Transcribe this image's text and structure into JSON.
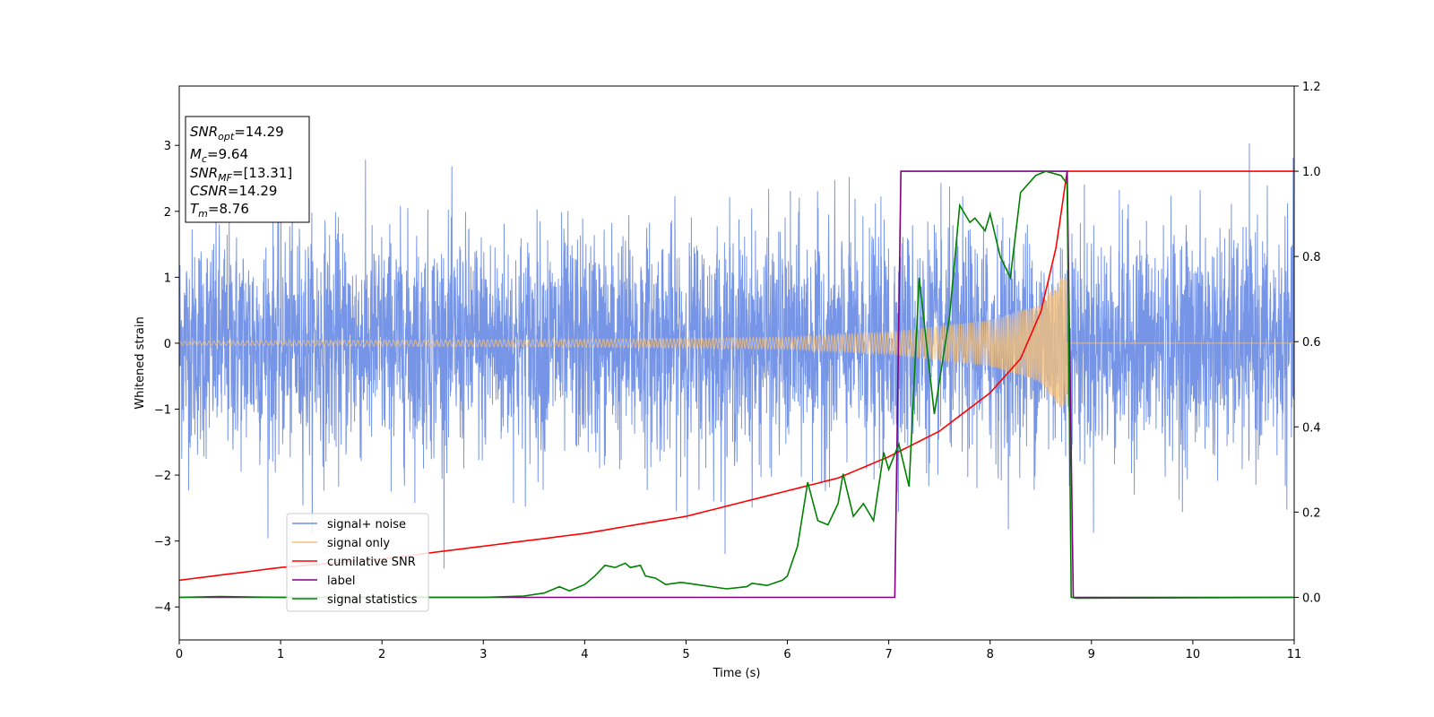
{
  "chart_data": {
    "type": "line",
    "xlabel": "Time (s)",
    "ylabel": "Whitened strain",
    "xlim": [
      0,
      11
    ],
    "ylim": [
      -4.5,
      3.9
    ],
    "y2lim": [
      -0.1,
      1.2
    ],
    "xticks": [
      "0",
      "1",
      "2",
      "3",
      "4",
      "5",
      "6",
      "7",
      "8",
      "9",
      "10",
      "11"
    ],
    "yticks": [
      "−4",
      "−3",
      "−2",
      "−1",
      "0",
      "1",
      "2",
      "3"
    ],
    "y2ticks": [
      "0.0",
      "0.2",
      "0.4",
      "0.6",
      "0.8",
      "1.0",
      "1.2"
    ],
    "grid": false,
    "legend_position": "lower-left",
    "legend": [
      {
        "label": "signal+ noise",
        "color": "#6f8fe6"
      },
      {
        "label": "signal only",
        "color": "#f5c07a"
      },
      {
        "label": "cumilative SNR",
        "color": "#ff0000"
      },
      {
        "label": "label",
        "color": "#800080"
      },
      {
        "label": "signal statistics",
        "color": "#008000"
      }
    ],
    "annotation": {
      "position": "top-left",
      "lines": [
        {
          "main": "SNR",
          "sub": "opt",
          "value": "=14.29"
        },
        {
          "main": "M",
          "sub": "c",
          "value": "=9.64"
        },
        {
          "main": "SNR",
          "sub": "MF",
          "value": "=[13.31]"
        },
        {
          "main": "CSNR",
          "sub": "",
          "value": "=14.29"
        },
        {
          "main": "T",
          "sub": "m",
          "value": "=8.76"
        }
      ]
    },
    "series": [
      {
        "name": "signal+ noise",
        "axis": "left",
        "style": "noise band",
        "x_range": [
          0,
          11
        ],
        "approx_band": [
          -2.2,
          2.2
        ],
        "approx_extremes": [
          -4.2,
          3.55
        ]
      },
      {
        "name": "signal only",
        "axis": "left",
        "style": "chirp",
        "x_range": [
          0,
          11
        ],
        "merger_time": 8.76,
        "envelope": [
          [
            0,
            0.03
          ],
          [
            4,
            0.06
          ],
          [
            6,
            0.09
          ],
          [
            7,
            0.17
          ],
          [
            8,
            0.35
          ],
          [
            8.5,
            0.6
          ],
          [
            8.7,
            1.0
          ],
          [
            8.76,
            1.0
          ]
        ]
      },
      {
        "name": "cumilative SNR",
        "axis": "right",
        "points": [
          [
            0,
            0.04
          ],
          [
            1,
            0.07
          ],
          [
            2,
            0.09
          ],
          [
            3,
            0.12
          ],
          [
            4,
            0.15
          ],
          [
            5,
            0.19
          ],
          [
            6,
            0.25
          ],
          [
            6.5,
            0.28
          ],
          [
            7,
            0.33
          ],
          [
            7.5,
            0.39
          ],
          [
            8,
            0.48
          ],
          [
            8.3,
            0.56
          ],
          [
            8.5,
            0.67
          ],
          [
            8.65,
            0.82
          ],
          [
            8.76,
            1.0
          ],
          [
            11,
            1.0
          ]
        ]
      },
      {
        "name": "label",
        "axis": "right",
        "points": [
          [
            0,
            0.0
          ],
          [
            7.06,
            0.0
          ],
          [
            7.12,
            1.0
          ],
          [
            8.76,
            1.0
          ],
          [
            8.82,
            0.0
          ],
          [
            11,
            0.0
          ]
        ]
      },
      {
        "name": "signal statistics",
        "axis": "right",
        "points": [
          [
            0,
            0.0
          ],
          [
            0.4,
            0.002
          ],
          [
            1,
            0.0
          ],
          [
            2,
            0.0
          ],
          [
            3,
            0.0
          ],
          [
            3.4,
            0.003
          ],
          [
            3.6,
            0.01
          ],
          [
            3.75,
            0.025
          ],
          [
            3.85,
            0.015
          ],
          [
            4.0,
            0.03
          ],
          [
            4.1,
            0.05
          ],
          [
            4.2,
            0.075
          ],
          [
            4.3,
            0.07
          ],
          [
            4.4,
            0.08
          ],
          [
            4.45,
            0.07
          ],
          [
            4.55,
            0.075
          ],
          [
            4.6,
            0.05
          ],
          [
            4.7,
            0.045
          ],
          [
            4.8,
            0.03
          ],
          [
            4.95,
            0.035
          ],
          [
            5.1,
            0.03
          ],
          [
            5.4,
            0.02
          ],
          [
            5.6,
            0.025
          ],
          [
            5.65,
            0.033
          ],
          [
            5.8,
            0.028
          ],
          [
            5.95,
            0.04
          ],
          [
            6.0,
            0.05
          ],
          [
            6.1,
            0.12
          ],
          [
            6.2,
            0.27
          ],
          [
            6.3,
            0.18
          ],
          [
            6.4,
            0.17
          ],
          [
            6.5,
            0.22
          ],
          [
            6.55,
            0.29
          ],
          [
            6.65,
            0.19
          ],
          [
            6.75,
            0.22
          ],
          [
            6.85,
            0.18
          ],
          [
            6.95,
            0.34
          ],
          [
            7.0,
            0.3
          ],
          [
            7.1,
            0.36
          ],
          [
            7.2,
            0.26
          ],
          [
            7.3,
            0.75
          ],
          [
            7.45,
            0.43
          ],
          [
            7.6,
            0.66
          ],
          [
            7.7,
            0.92
          ],
          [
            7.8,
            0.88
          ],
          [
            7.85,
            0.89
          ],
          [
            7.95,
            0.86
          ],
          [
            8.0,
            0.9
          ],
          [
            8.1,
            0.8
          ],
          [
            8.2,
            0.75
          ],
          [
            8.3,
            0.95
          ],
          [
            8.45,
            0.99
          ],
          [
            8.55,
            1.0
          ],
          [
            8.7,
            0.99
          ],
          [
            8.76,
            0.97
          ],
          [
            8.8,
            0.0
          ],
          [
            8.85,
            -0.002
          ],
          [
            11,
            0.0
          ]
        ]
      }
    ]
  }
}
